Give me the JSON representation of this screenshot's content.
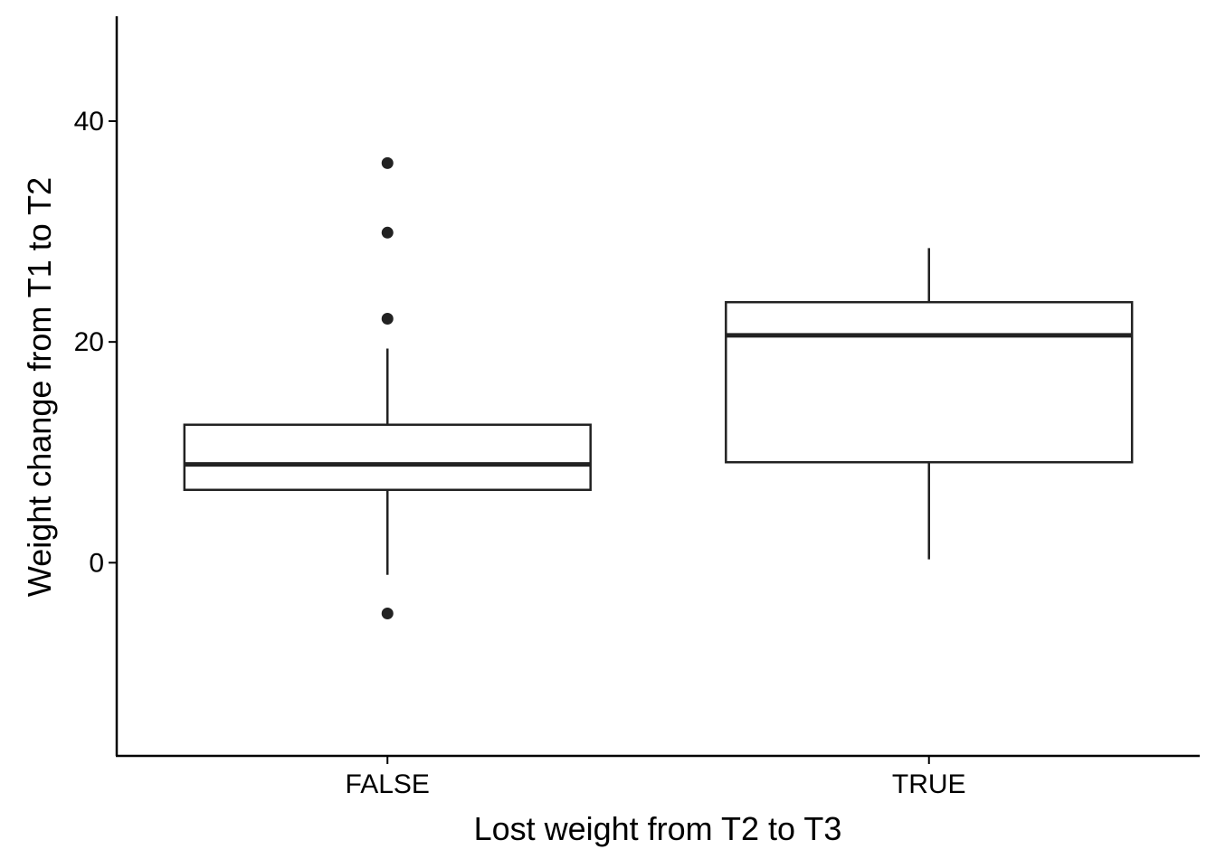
{
  "chart_data": {
    "type": "boxplot",
    "title": "",
    "xlabel": "Lost weight from T2 to T3",
    "ylabel": "Weight change from T1 to T2",
    "ylim": [
      -17.5,
      49.5
    ],
    "yticks": [
      0,
      20,
      40
    ],
    "ytick_labels": [
      "0",
      "20",
      "40"
    ],
    "grid": false,
    "categories": [
      "FALSE",
      "TRUE"
    ],
    "boxes": [
      {
        "category": "FALSE",
        "whisker_low": -1.1,
        "q1": 6.6,
        "median": 8.9,
        "q3": 12.5,
        "whisker_high": 19.4,
        "outliers": [
          36.2,
          29.9,
          22.1,
          -4.6
        ]
      },
      {
        "category": "TRUE",
        "whisker_low": 0.3,
        "q1": 9.1,
        "median": 20.6,
        "q3": 23.6,
        "whisker_high": 28.5,
        "outliers": []
      }
    ]
  }
}
